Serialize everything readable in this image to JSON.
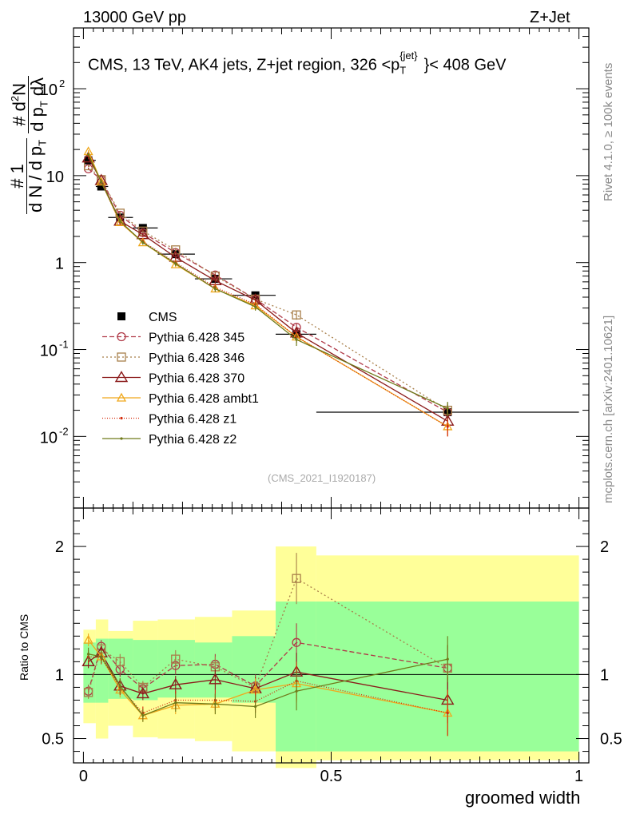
{
  "header": {
    "left": "13000 GeV pp",
    "right": "Z+Jet"
  },
  "side": {
    "rivet": "Rivet 4.1.0, ≥ 100k events",
    "mcplots": "mcplots.cern.ch [arXiv:2401.10621]"
  },
  "plot_label": {
    "pre": "CMS, 13 TeV, AK4 jets, Z+jet region, 326 <p",
    "sub": "T",
    "sup": "{jet}",
    "post": "}< 408 GeV"
  },
  "ytitle": {
    "hash1": "#",
    "one": "1",
    "dN": "d N / d p",
    "dN_sub": "T",
    "hash2": "#",
    "d2N": "d",
    "d2N_sup": "2",
    "d2N_rest": "N",
    "dpt": "d p",
    "dpt_sub": "T",
    "dl": " dλ"
  },
  "xtitle": "groomed width",
  "ratio_title": "Ratio to CMS",
  "signature": "(CMS_2021_I1920187)",
  "colors": {
    "data": "#000000",
    "p345": "#b03a48",
    "p346": "#a87f4a",
    "p370": "#8b1a1a",
    "ambt1": "#f0a81c",
    "z1": "#d42a0a",
    "z2": "#6f7a1a",
    "band_inner": "#99ff99",
    "band_outer": "#ffff99"
  },
  "chart_data": [
    {
      "type": "line",
      "scale": "log",
      "xlim": [
        -0.02,
        1.02
      ],
      "ylim": [
        0.0015,
        500
      ],
      "y_ticks": [
        {
          "v": 0.01,
          "label": "10",
          "exp": "-2"
        },
        {
          "v": 0.1,
          "label": "10",
          "exp": "-1"
        },
        {
          "v": 1,
          "label": "1",
          "exp": ""
        },
        {
          "v": 10,
          "label": "10",
          "exp": ""
        },
        {
          "v": 100,
          "label": "10",
          "exp": "2"
        }
      ],
      "x_bins": [
        0.0,
        0.025,
        0.05,
        0.1,
        0.15,
        0.225,
        0.3,
        0.388,
        0.47,
        1.0
      ],
      "x": [
        0.01,
        0.036,
        0.074,
        0.12,
        0.186,
        0.266,
        0.347,
        0.43,
        0.735
      ],
      "series": [
        {
          "name": "CMS",
          "key": "data",
          "style": "data",
          "values": [
            15.0,
            7.5,
            3.3,
            2.5,
            1.25,
            0.65,
            0.42,
            0.15,
            0.019
          ],
          "err": [
            1.0,
            0.6,
            0.25,
            0.18,
            0.1,
            0.06,
            0.04,
            0.02,
            0.004
          ]
        },
        {
          "name": "Pythia 6.428 345",
          "key": "p345",
          "style": "circle",
          "dash": "6,3",
          "values": [
            12.0,
            9.0,
            3.5,
            2.2,
            1.3,
            0.72,
            0.38,
            0.18,
            0.019
          ],
          "err": [
            0.4,
            0.4,
            0.2,
            0.1,
            0.08,
            0.05,
            0.03,
            0.02,
            0.003
          ]
        },
        {
          "name": "Pythia 6.428 346",
          "key": "p346",
          "style": "square",
          "dash": "2,3",
          "values": [
            13.0,
            9.0,
            3.7,
            2.3,
            1.4,
            0.7,
            0.38,
            0.25,
            0.02
          ],
          "err": [
            0.4,
            0.4,
            0.2,
            0.1,
            0.08,
            0.05,
            0.03,
            0.03,
            0.004
          ]
        },
        {
          "name": "Pythia 6.428 370",
          "key": "p370",
          "style": "triangle",
          "dash": "",
          "values": [
            16.0,
            8.8,
            3.0,
            2.1,
            1.15,
            0.62,
            0.37,
            0.155,
            0.015
          ],
          "err": [
            0.5,
            0.4,
            0.2,
            0.1,
            0.08,
            0.05,
            0.03,
            0.02,
            0.003
          ]
        },
        {
          "name": "Pythia 6.428 ambt1",
          "key": "ambt1",
          "style": "triangle-small",
          "dash": "",
          "values": [
            19.0,
            8.5,
            2.9,
            1.7,
            0.95,
            0.5,
            0.32,
            0.14,
            0.013
          ],
          "err": [
            0.6,
            0.4,
            0.2,
            0.1,
            0.06,
            0.04,
            0.03,
            0.02,
            0.003
          ]
        },
        {
          "name": "Pythia 6.428 z1",
          "key": "z1",
          "style": "dot",
          "dash": "1,2",
          "values": [
            17.0,
            8.5,
            2.9,
            1.75,
            1.0,
            0.52,
            0.33,
            0.14,
            0.013
          ],
          "err": [
            0.6,
            0.4,
            0.2,
            0.1,
            0.06,
            0.04,
            0.03,
            0.02,
            0.003
          ]
        },
        {
          "name": "Pythia 6.428 z2",
          "key": "z2",
          "style": "dot",
          "dash": "",
          "values": [
            17.5,
            8.5,
            3.0,
            1.7,
            0.97,
            0.5,
            0.31,
            0.13,
            0.021
          ],
          "err": [
            0.6,
            0.4,
            0.2,
            0.1,
            0.06,
            0.04,
            0.03,
            0.02,
            0.004
          ]
        }
      ]
    },
    {
      "type": "line",
      "scale": "linear",
      "title": "Ratio to CMS",
      "xlabel": "groomed width",
      "xlim": [
        -0.02,
        1.02
      ],
      "ylim": [
        0.31,
        2.3
      ],
      "y_ticks": [
        0.5,
        1,
        2
      ],
      "y_tick_labels": [
        "0.5",
        "1",
        "2"
      ],
      "x_ticks": [
        0,
        0.5,
        1
      ],
      "x_tick_labels": [
        "0",
        "0.5",
        "1"
      ],
      "band_inner": [
        [
          0.78,
          1.25
        ],
        [
          0.78,
          1.28
        ],
        [
          0.81,
          1.28
        ],
        [
          0.8,
          1.27
        ],
        [
          0.82,
          1.27
        ],
        [
          0.82,
          1.25
        ],
        [
          0.78,
          1.3
        ],
        [
          0.4,
          1.57
        ],
        [
          0.4,
          1.57
        ]
      ],
      "band_outer": [
        [
          0.62,
          1.35
        ],
        [
          0.5,
          1.43
        ],
        [
          0.6,
          1.34
        ],
        [
          0.51,
          1.42
        ],
        [
          0.5,
          1.43
        ],
        [
          0.48,
          1.45
        ],
        [
          0.4,
          1.5
        ],
        [
          0.27,
          2.0
        ],
        [
          0.33,
          1.93
        ]
      ],
      "series": [
        {
          "key": "p345",
          "style": "circle",
          "dash": "6,3",
          "values": [
            0.87,
            1.22,
            1.04,
            0.89,
            1.07,
            1.08,
            0.91,
            1.25,
            1.05
          ],
          "err": [
            0.05,
            0.05,
            0.06,
            0.05,
            0.07,
            0.08,
            0.09,
            0.15,
            0.18
          ]
        },
        {
          "key": "p346",
          "style": "square",
          "dash": "2,3",
          "values": [
            0.86,
            1.2,
            1.1,
            0.9,
            1.12,
            1.06,
            0.9,
            1.75,
            1.05
          ],
          "err": [
            0.05,
            0.05,
            0.06,
            0.05,
            0.07,
            0.08,
            0.09,
            0.2,
            0.18
          ]
        },
        {
          "key": "p370",
          "style": "triangle",
          "dash": "",
          "values": [
            1.1,
            1.17,
            0.91,
            0.85,
            0.92,
            0.96,
            0.89,
            1.02,
            0.8
          ],
          "err": [
            0.05,
            0.05,
            0.06,
            0.05,
            0.07,
            0.08,
            0.09,
            0.15,
            0.18
          ]
        },
        {
          "key": "ambt1",
          "style": "triangle-small",
          "dash": "",
          "values": [
            1.27,
            1.14,
            0.88,
            0.68,
            0.76,
            0.77,
            0.88,
            0.93,
            0.7
          ],
          "err": [
            0.05,
            0.05,
            0.06,
            0.05,
            0.07,
            0.08,
            0.09,
            0.15,
            0.18
          ]
        },
        {
          "key": "z1",
          "style": "dot",
          "dash": "1,2",
          "values": [
            1.14,
            1.13,
            0.9,
            0.7,
            0.8,
            0.8,
            0.79,
            0.95,
            0.7
          ],
          "err": [
            0.05,
            0.05,
            0.06,
            0.05,
            0.07,
            0.08,
            0.09,
            0.15,
            0.18
          ]
        },
        {
          "key": "z2",
          "style": "dot",
          "dash": "",
          "values": [
            1.16,
            1.14,
            0.91,
            0.68,
            0.78,
            0.77,
            0.75,
            0.87,
            1.12
          ],
          "err": [
            0.05,
            0.05,
            0.06,
            0.05,
            0.07,
            0.08,
            0.09,
            0.15,
            0.18
          ]
        }
      ]
    }
  ]
}
